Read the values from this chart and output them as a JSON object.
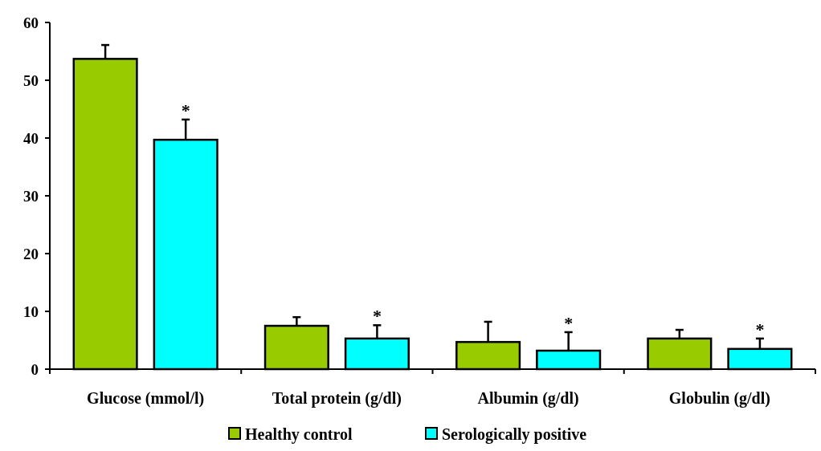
{
  "chart_data": {
    "type": "bar",
    "categories": [
      "Glucose (mmol/l)",
      "Total protein (g/dl)",
      "Albumin (g/dl)",
      "Globulin (g/dl)"
    ],
    "series": [
      {
        "name": "Healthy control",
        "color": "#99cc00",
        "values": [
          53.7,
          7.5,
          4.7,
          5.3
        ],
        "errors": [
          [
            53.7,
            56.1
          ],
          [
            7.5,
            9.0
          ],
          [
            4.7,
            8.2
          ],
          [
            5.3,
            6.8
          ]
        ]
      },
      {
        "name": "Serologically positive",
        "color": "#00ffff",
        "values": [
          39.7,
          5.3,
          3.2,
          3.5
        ],
        "errors": [
          [
            39.7,
            43.2
          ],
          [
            5.3,
            7.6
          ],
          [
            3.2,
            6.4
          ],
          [
            3.5,
            5.3
          ]
        ]
      }
    ],
    "annotations": [
      "*",
      "*",
      "*",
      "*"
    ],
    "ylim": [
      0,
      60
    ],
    "yticks": [
      0,
      10,
      20,
      30,
      40,
      50,
      60
    ],
    "grid": false,
    "legend": "bottom"
  }
}
